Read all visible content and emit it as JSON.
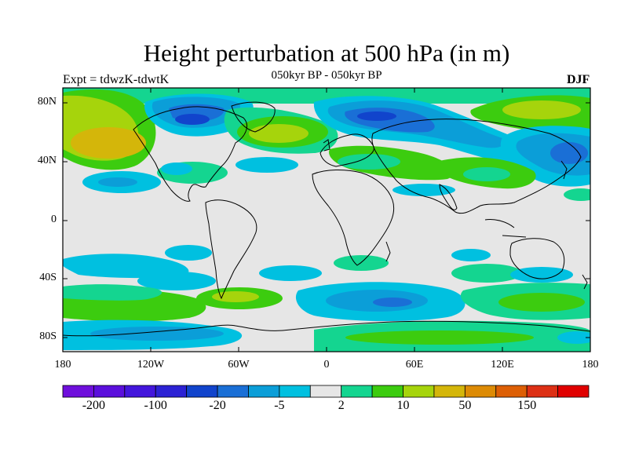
{
  "header": {
    "title": "Height perturbation at 500 hPa (in m)",
    "experiment": "Expt = tdwzK-tdwtK",
    "period": "050kyr BP - 050kyr BP",
    "season": "DJF"
  },
  "map": {
    "lat_ticks": [
      "80N",
      "40N",
      "0",
      "40S",
      "80S"
    ],
    "lon_ticks": [
      "180",
      "120W",
      "60W",
      "0",
      "60E",
      "120E",
      "180"
    ],
    "land_color": "#e6e6e6",
    "coast_color": "#000000"
  },
  "colorbar": {
    "colors": [
      "#6f0fdc",
      "#5b0fdc",
      "#4316dc",
      "#2c22d4",
      "#1144cc",
      "#1a6fd6",
      "#0b9ed8",
      "#00c0e0",
      "#e6e6e6",
      "#14d590",
      "#3ccc0f",
      "#a6d40c",
      "#d4b60a",
      "#dd8b05",
      "#dd5f05",
      "#dd3015",
      "#e00000"
    ],
    "labels": [
      "-200",
      "-100",
      "-20",
      "-5",
      "2",
      "10",
      "50",
      "150"
    ]
  }
}
